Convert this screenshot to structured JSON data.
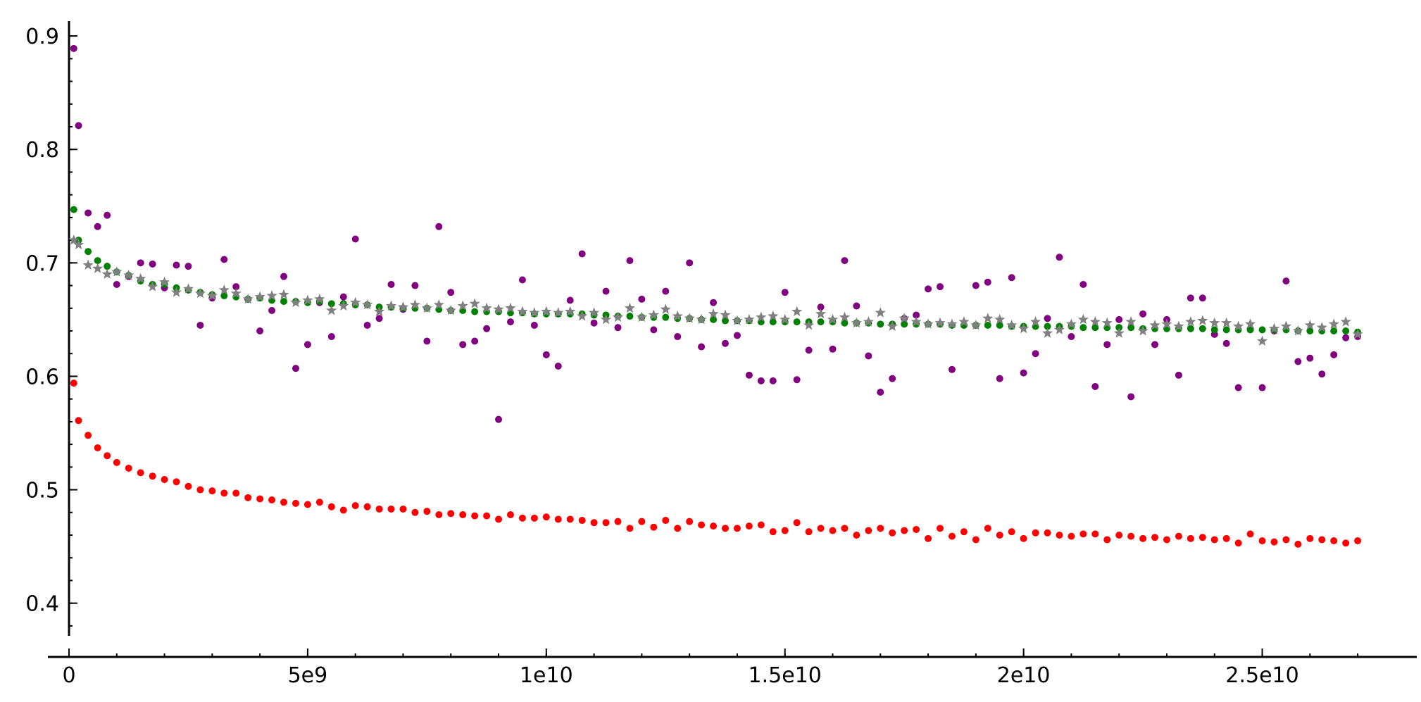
{
  "chart_data": {
    "type": "scatter",
    "xlim": [
      0,
      27500000000
    ],
    "ylim": [
      0.37,
      0.91
    ],
    "grid": false,
    "legend": "none",
    "x_ticks": [
      {
        "value": 0,
        "label": "0"
      },
      {
        "value": 5000000000,
        "label": "5e9"
      },
      {
        "value": 10000000000,
        "label": "1e10"
      },
      {
        "value": 15000000000,
        "label": "1.5e10"
      },
      {
        "value": 20000000000,
        "label": "2e10"
      },
      {
        "value": 25000000000,
        "label": "2.5e10"
      }
    ],
    "y_ticks": [
      {
        "value": 0.4,
        "label": "0.4"
      },
      {
        "value": 0.5,
        "label": "0.5"
      },
      {
        "value": 0.6,
        "label": "0.6"
      },
      {
        "value": 0.7,
        "label": "0.7"
      },
      {
        "value": 0.8,
        "label": "0.8"
      },
      {
        "value": 0.9,
        "label": "0.9"
      }
    ],
    "x_minor_step": 1000000000,
    "y_minor_step": 0.02,
    "x": [
      100000000,
      200000000,
      400000000,
      600000000,
      800000000,
      1000000000,
      1250000000,
      1500000000,
      1750000000,
      2000000000,
      2250000000,
      2500000000,
      2750000000,
      3000000000,
      3250000000,
      3500000000,
      3750000000,
      4000000000,
      4250000000,
      4500000000,
      4750000000,
      5000000000,
      5250000000,
      5500000000,
      5750000000,
      6000000000,
      6250000000,
      6500000000,
      6750000000,
      7000000000,
      7250000000,
      7500000000,
      7750000000,
      8000000000,
      8250000000,
      8500000000,
      8750000000,
      9000000000,
      9250000000,
      9500000000,
      9750000000,
      10000000000,
      10250000000,
      10500000000,
      10750000000,
      11000000000,
      11250000000,
      11500000000,
      11750000000,
      12000000000,
      12250000000,
      12500000000,
      12750000000,
      13000000000,
      13250000000,
      13500000000,
      13750000000,
      14000000000,
      14250000000,
      14500000000,
      14750000000,
      15000000000,
      15250000000,
      15500000000,
      15750000000,
      16000000000,
      16250000000,
      16500000000,
      16750000000,
      17000000000,
      17250000000,
      17500000000,
      17750000000,
      18000000000,
      18250000000,
      18500000000,
      18750000000,
      19000000000,
      19250000000,
      19500000000,
      19750000000,
      20000000000,
      20250000000,
      20500000000,
      20750000000,
      21000000000,
      21250000000,
      21500000000,
      21750000000,
      22000000000,
      22250000000,
      22500000000,
      22750000000,
      23000000000,
      23250000000,
      23500000000,
      23750000000,
      24000000000,
      24250000000,
      24500000000,
      24750000000,
      25000000000,
      25250000000,
      25500000000,
      25750000000,
      26000000000,
      26250000000,
      26500000000,
      26750000000,
      27000000000
    ],
    "series": [
      {
        "color": "#800080",
        "marker": "circle",
        "values": [
          0.889,
          0.821,
          0.744,
          0.732,
          0.742,
          0.681,
          0.688,
          0.7,
          0.699,
          0.678,
          0.698,
          0.697,
          0.645,
          0.669,
          0.703,
          0.679,
          0.668,
          0.64,
          0.658,
          0.688,
          0.607,
          0.628,
          0.665,
          0.635,
          0.67,
          0.721,
          0.645,
          0.651,
          0.681,
          0.659,
          0.68,
          0.631,
          0.732,
          0.674,
          0.628,
          0.631,
          0.642,
          0.562,
          0.648,
          0.685,
          0.645,
          0.619,
          0.609,
          0.667,
          0.708,
          0.647,
          0.675,
          0.643,
          0.702,
          0.668,
          0.641,
          0.675,
          0.635,
          0.7,
          0.626,
          0.665,
          0.629,
          0.636,
          0.601,
          0.596,
          0.596,
          0.674,
          0.597,
          0.623,
          0.661,
          0.624,
          0.702,
          0.662,
          0.618,
          0.586,
          0.598,
          0.651,
          0.654,
          0.677,
          0.679,
          0.606,
          0.645,
          0.68,
          0.683,
          0.598,
          0.687,
          0.603,
          0.62,
          0.651,
          0.705,
          0.635,
          0.681,
          0.591,
          0.628,
          0.65,
          0.582,
          0.655,
          0.628,
          0.65,
          0.601,
          0.669,
          0.669,
          0.637,
          0.629,
          0.59,
          0.642,
          0.59,
          0.64,
          0.684,
          0.613,
          0.616,
          0.602,
          0.619,
          0.634,
          0.635
        ]
      },
      {
        "color": "#008000",
        "marker": "circle",
        "values": [
          0.747,
          0.72,
          0.71,
          0.702,
          0.697,
          0.692,
          0.689,
          0.684,
          0.681,
          0.681,
          0.678,
          0.676,
          0.674,
          0.672,
          0.671,
          0.67,
          0.668,
          0.669,
          0.667,
          0.666,
          0.666,
          0.665,
          0.666,
          0.664,
          0.664,
          0.663,
          0.663,
          0.661,
          0.661,
          0.66,
          0.66,
          0.66,
          0.659,
          0.658,
          0.658,
          0.657,
          0.657,
          0.657,
          0.656,
          0.656,
          0.655,
          0.655,
          0.655,
          0.655,
          0.655,
          0.654,
          0.654,
          0.653,
          0.653,
          0.652,
          0.652,
          0.652,
          0.651,
          0.651,
          0.65,
          0.65,
          0.649,
          0.649,
          0.649,
          0.648,
          0.648,
          0.648,
          0.648,
          0.648,
          0.648,
          0.648,
          0.647,
          0.647,
          0.647,
          0.646,
          0.646,
          0.646,
          0.646,
          0.646,
          0.646,
          0.645,
          0.645,
          0.645,
          0.645,
          0.645,
          0.644,
          0.644,
          0.644,
          0.644,
          0.644,
          0.644,
          0.643,
          0.643,
          0.643,
          0.643,
          0.643,
          0.642,
          0.642,
          0.642,
          0.642,
          0.642,
          0.642,
          0.641,
          0.641,
          0.641,
          0.641,
          0.641,
          0.641,
          0.641,
          0.64,
          0.64,
          0.64,
          0.64,
          0.64,
          0.639
        ]
      },
      {
        "color": "#808080",
        "marker": "star",
        "values": [
          0.72,
          0.716,
          0.698,
          0.695,
          0.69,
          0.692,
          0.689,
          0.686,
          0.679,
          0.683,
          0.674,
          0.677,
          0.673,
          0.671,
          0.676,
          0.673,
          0.668,
          0.67,
          0.671,
          0.672,
          0.665,
          0.667,
          0.668,
          0.658,
          0.662,
          0.665,
          0.663,
          0.657,
          0.662,
          0.661,
          0.663,
          0.66,
          0.663,
          0.658,
          0.662,
          0.664,
          0.66,
          0.659,
          0.66,
          0.657,
          0.656,
          0.657,
          0.656,
          0.657,
          0.653,
          0.656,
          0.65,
          0.652,
          0.66,
          0.652,
          0.654,
          0.659,
          0.653,
          0.651,
          0.65,
          0.655,
          0.654,
          0.649,
          0.65,
          0.652,
          0.653,
          0.65,
          0.657,
          0.645,
          0.655,
          0.65,
          0.652,
          0.647,
          0.648,
          0.656,
          0.644,
          0.651,
          0.648,
          0.646,
          0.647,
          0.646,
          0.648,
          0.645,
          0.651,
          0.65,
          0.645,
          0.642,
          0.648,
          0.638,
          0.641,
          0.646,
          0.65,
          0.648,
          0.647,
          0.638,
          0.648,
          0.64,
          0.645,
          0.646,
          0.644,
          0.648,
          0.649,
          0.647,
          0.647,
          0.644,
          0.646,
          0.631,
          0.642,
          0.644,
          0.64,
          0.645,
          0.643,
          0.646,
          0.648,
          0.637
        ]
      },
      {
        "color": "#ff0000",
        "marker": "circle",
        "values": [
          0.594,
          0.561,
          0.548,
          0.537,
          0.53,
          0.524,
          0.519,
          0.515,
          0.512,
          0.509,
          0.507,
          0.503,
          0.5,
          0.499,
          0.497,
          0.497,
          0.493,
          0.492,
          0.491,
          0.489,
          0.488,
          0.487,
          0.489,
          0.485,
          0.482,
          0.486,
          0.485,
          0.483,
          0.483,
          0.483,
          0.48,
          0.481,
          0.478,
          0.479,
          0.478,
          0.477,
          0.477,
          0.474,
          0.478,
          0.475,
          0.475,
          0.476,
          0.474,
          0.474,
          0.473,
          0.471,
          0.471,
          0.472,
          0.466,
          0.472,
          0.467,
          0.473,
          0.466,
          0.472,
          0.469,
          0.468,
          0.466,
          0.466,
          0.468,
          0.469,
          0.463,
          0.464,
          0.471,
          0.463,
          0.466,
          0.464,
          0.466,
          0.46,
          0.464,
          0.466,
          0.462,
          0.464,
          0.465,
          0.457,
          0.466,
          0.459,
          0.463,
          0.456,
          0.466,
          0.46,
          0.463,
          0.457,
          0.462,
          0.462,
          0.46,
          0.459,
          0.461,
          0.461,
          0.456,
          0.46,
          0.459,
          0.457,
          0.458,
          0.456,
          0.459,
          0.457,
          0.458,
          0.456,
          0.457,
          0.453,
          0.461,
          0.455,
          0.454,
          0.456,
          0.452,
          0.457,
          0.456,
          0.455,
          0.453,
          0.455
        ]
      }
    ]
  }
}
